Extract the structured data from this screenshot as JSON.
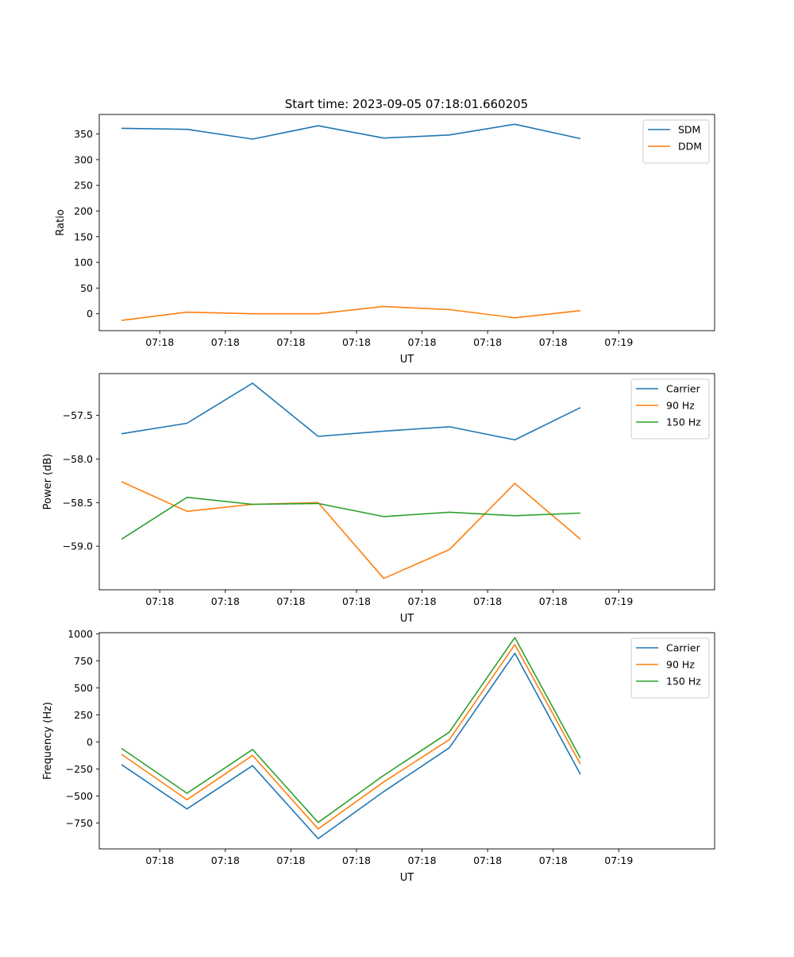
{
  "title": "Start time: 2023-09-05 07:18:01.660205",
  "colors": {
    "blue": "#1f77b4",
    "orange": "#ff7f0e",
    "green": "#2ca02c"
  },
  "chart_data": [
    {
      "type": "line",
      "xlabel": "UT",
      "ylabel": "Ratio",
      "x_ticks": [
        "07:18",
        "07:18",
        "07:18",
        "07:18",
        "07:18",
        "07:18",
        "07:18",
        "07:19"
      ],
      "x_index": [
        0.5,
        1.15,
        1.8,
        2.45,
        3.1,
        3.75,
        4.4,
        5.05
      ],
      "xlim": [
        -0.1,
        6.0
      ],
      "y_ticks": [
        0,
        50,
        100,
        150,
        200,
        250,
        300,
        350
      ],
      "ylim": [
        -33,
        388
      ],
      "legend_position": "top-right",
      "series": [
        {
          "name": "SDM",
          "color": "#1f77b4",
          "values": [
            361,
            359,
            340,
            366,
            342,
            348,
            369,
            341
          ]
        },
        {
          "name": "DDM",
          "color": "#ff7f0e",
          "values": [
            -13,
            3,
            0,
            0,
            14,
            8,
            -8,
            6
          ]
        }
      ]
    },
    {
      "type": "line",
      "xlabel": "UT",
      "ylabel": "Power (dB)",
      "x_ticks": [
        "07:18",
        "07:18",
        "07:18",
        "07:18",
        "07:18",
        "07:18",
        "07:18",
        "07:19"
      ],
      "x_index": [
        0.5,
        1.15,
        1.8,
        2.45,
        3.1,
        3.75,
        4.4,
        5.05
      ],
      "xlim": [
        -0.1,
        6.0
      ],
      "y_ticks": [
        -59.0,
        -58.5,
        -58.0,
        -57.5
      ],
      "y_tick_labels": [
        "−59.0",
        "−58.5",
        "−58.0",
        "−57.5"
      ],
      "ylim": [
        -59.5,
        -57.02
      ],
      "legend_position": "top-right",
      "series": [
        {
          "name": "Carrier",
          "color": "#1f77b4",
          "values": [
            -57.71,
            -57.59,
            -57.13,
            -57.74,
            -57.68,
            -57.63,
            -57.78,
            -57.41
          ]
        },
        {
          "name": "90 Hz",
          "color": "#ff7f0e",
          "values": [
            -58.26,
            -58.6,
            -58.52,
            -58.5,
            -59.37,
            -59.04,
            -58.28,
            -58.92
          ]
        },
        {
          "name": "150 Hz",
          "color": "#2ca02c",
          "values": [
            -58.92,
            -58.44,
            -58.52,
            -58.51,
            -58.66,
            -58.61,
            -58.65,
            -58.62
          ]
        }
      ]
    },
    {
      "type": "line",
      "xlabel": "UT",
      "ylabel": "Frequency (Hz)",
      "x_ticks": [
        "07:18",
        "07:18",
        "07:18",
        "07:18",
        "07:18",
        "07:18",
        "07:18",
        "07:19"
      ],
      "x_index": [
        0.5,
        1.15,
        1.8,
        2.45,
        3.1,
        3.75,
        4.4,
        5.05
      ],
      "xlim": [
        -0.1,
        6.0
      ],
      "y_ticks": [
        -750,
        -500,
        -250,
        0,
        250,
        500,
        750,
        1000
      ],
      "y_tick_labels": [
        "−750",
        "−500",
        "−250",
        "0",
        "250",
        "500",
        "750",
        "1000"
      ],
      "ylim": [
        -990,
        1010
      ],
      "legend_position": "top-right",
      "series": [
        {
          "name": "Carrier",
          "color": "#1f77b4",
          "values": [
            -210,
            -620,
            -220,
            -895,
            -460,
            -55,
            820,
            -300
          ]
        },
        {
          "name": "90 Hz",
          "color": "#ff7f0e",
          "values": [
            -115,
            -535,
            -125,
            -805,
            -370,
            20,
            900,
            -205
          ]
        },
        {
          "name": "150 Hz",
          "color": "#2ca02c",
          "values": [
            -60,
            -475,
            -70,
            -745,
            -310,
            90,
            965,
            -150
          ]
        }
      ]
    }
  ],
  "x_points": [
    0.12,
    0.77,
    1.42,
    2.07,
    2.72,
    3.37,
    4.02,
    4.67
  ]
}
